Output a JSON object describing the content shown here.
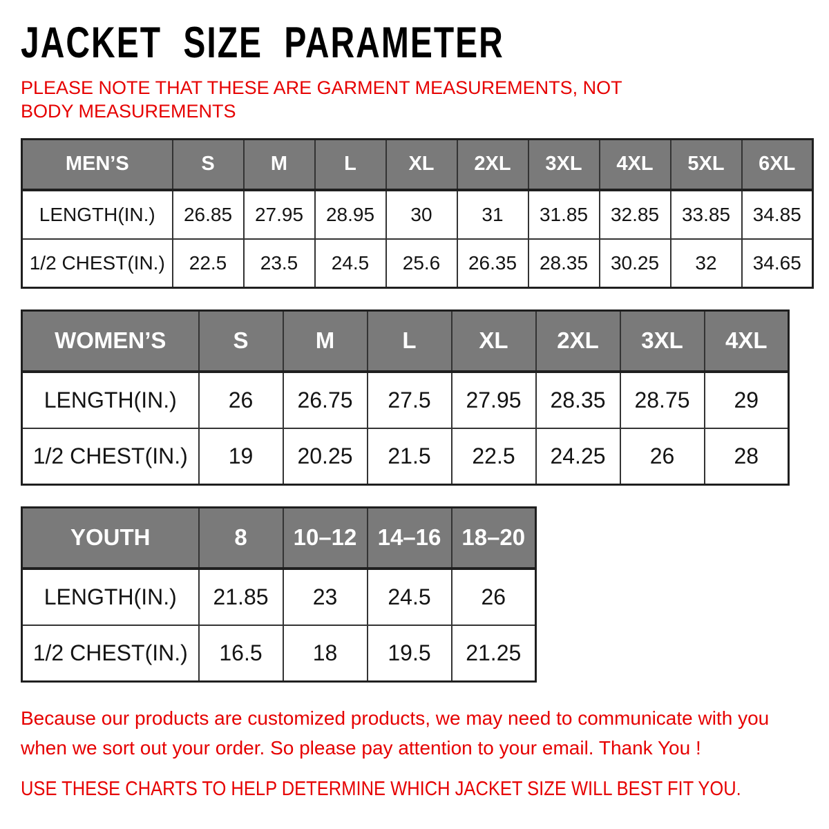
{
  "title": "JACKET SIZE PARAMETER",
  "note": "PLEASE NOTE THAT THESE ARE GARMENT MEASUREMENTS, NOT BODY MEASUREMENTS",
  "colors": {
    "accent_red": "#e60000",
    "header_gray": "#7a7a7a",
    "header_text": "#ffffff",
    "outer_border": "#1f1f1f",
    "grid_line": "#333333"
  },
  "tables": [
    {
      "id": "mens",
      "name": "MEN’S",
      "sizes": [
        "S",
        "M",
        "L",
        "XL",
        "2XL",
        "3XL",
        "4XL",
        "5XL",
        "6XL"
      ],
      "rows": [
        {
          "label": "LENGTH(IN.)",
          "values": [
            "26.85",
            "27.95",
            "28.95",
            "30",
            "31",
            "31.85",
            "32.85",
            "33.85",
            "34.85"
          ]
        },
        {
          "label": "1/2 CHEST(IN.)",
          "values": [
            "22.5",
            "23.5",
            "24.5",
            "25.6",
            "26.35",
            "28.35",
            "30.25",
            "32",
            "34.65"
          ]
        }
      ]
    },
    {
      "id": "womens",
      "name": "WOMEN’S",
      "sizes": [
        "S",
        "M",
        "L",
        "XL",
        "2XL",
        "3XL",
        "4XL"
      ],
      "rows": [
        {
          "label": "LENGTH(IN.)",
          "values": [
            "26",
            "26.75",
            "27.5",
            "27.95",
            "28.35",
            "28.75",
            "29"
          ]
        },
        {
          "label": "1/2 CHEST(IN.)",
          "values": [
            "19",
            "20.25",
            "21.5",
            "22.5",
            "24.25",
            "26",
            "28"
          ]
        }
      ]
    },
    {
      "id": "youth",
      "name": "YOUTH",
      "sizes": [
        "8",
        "10–12",
        "14–16",
        "18–20"
      ],
      "rows": [
        {
          "label": "LENGTH(IN.)",
          "values": [
            "21.85",
            "23",
            "24.5",
            "26"
          ]
        },
        {
          "label": "1/2 CHEST(IN.)",
          "values": [
            "16.5",
            "18",
            "19.5",
            "21.25"
          ]
        }
      ]
    }
  ],
  "footer": {
    "customized_note": "Because our products are customized products, we may need to communicate with you when we sort out your order. So please pay attention to your email. Thank You !",
    "use_charts": "USE THESE CHARTS TO HELP DETERMINE WHICH JACKET SIZE WILL BEST FIT YOU."
  }
}
